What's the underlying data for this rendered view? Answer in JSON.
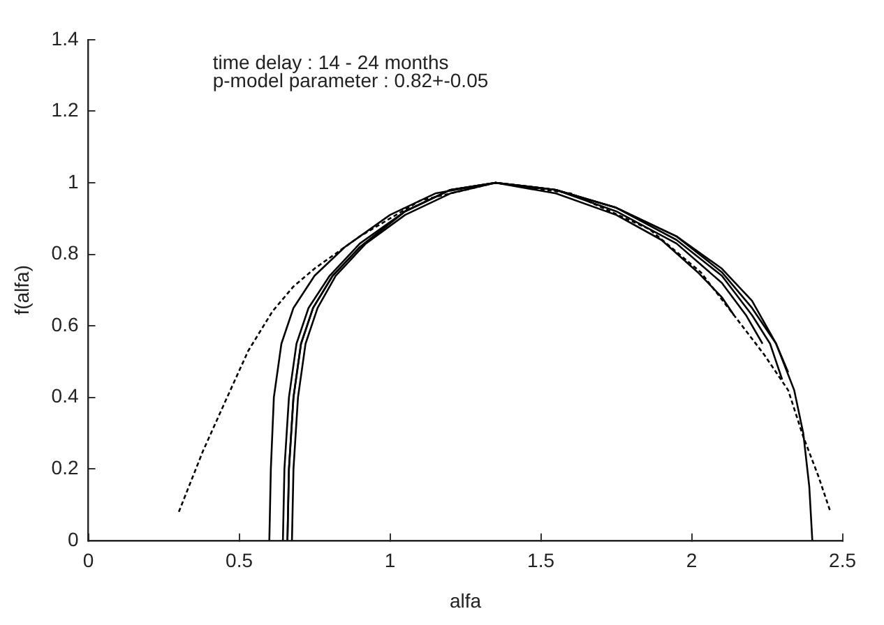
{
  "chart_data": {
    "type": "line",
    "xlabel": "alfa",
    "ylabel": "f(alfa)",
    "annotations": [
      "time delay : 14 - 24 months",
      "p-model parameter : 0.82+-0.05"
    ],
    "xlim": [
      0,
      2.5
    ],
    "xticks": [
      0,
      0.5,
      1,
      1.5,
      2,
      2.5
    ],
    "ylim": [
      0,
      1.4
    ],
    "yticks": [
      0,
      0.2,
      0.4,
      0.6,
      0.8,
      1,
      1.2,
      1.4
    ],
    "grid": false,
    "legend": false,
    "marker": "none",
    "series": [
      {
        "color": "#000000",
        "line_style": "solid",
        "x": [
          0.6,
          0.605,
          0.615,
          0.64,
          0.68,
          0.75,
          0.85,
          1.0,
          1.15,
          1.35,
          1.55,
          1.75,
          1.95,
          2.1,
          2.2,
          2.28,
          2.34,
          2.37,
          2.39,
          2.4
        ],
        "values": [
          0,
          0.2,
          0.4,
          0.55,
          0.65,
          0.74,
          0.82,
          0.91,
          0.97,
          1.0,
          0.98,
          0.93,
          0.85,
          0.76,
          0.67,
          0.55,
          0.42,
          0.3,
          0.15,
          0
        ]
      },
      {
        "color": "#000000",
        "line_style": "solid",
        "x": [
          0.645,
          0.65,
          0.665,
          0.69,
          0.73,
          0.8,
          0.9,
          1.05,
          1.2,
          1.35,
          1.55,
          1.75,
          1.95,
          2.1,
          2.2,
          2.28,
          2.32
        ],
        "values": [
          0,
          0.2,
          0.4,
          0.55,
          0.65,
          0.74,
          0.83,
          0.92,
          0.98,
          1.0,
          0.98,
          0.93,
          0.85,
          0.75,
          0.65,
          0.55,
          0.47
        ]
      },
      {
        "color": "#000000",
        "line_style": "solid",
        "x": [
          0.66,
          0.665,
          0.68,
          0.705,
          0.745,
          0.81,
          0.9,
          1.05,
          1.2,
          1.35,
          1.55,
          1.75,
          1.95,
          2.1,
          2.2,
          2.26,
          2.3
        ],
        "values": [
          0,
          0.2,
          0.4,
          0.55,
          0.65,
          0.74,
          0.82,
          0.92,
          0.98,
          1.0,
          0.98,
          0.93,
          0.84,
          0.74,
          0.63,
          0.55,
          0.45
        ]
      },
      {
        "color": "#000000",
        "line_style": "solid",
        "x": [
          0.675,
          0.68,
          0.695,
          0.72,
          0.76,
          0.82,
          0.92,
          1.05,
          1.2,
          1.35,
          1.55,
          1.75,
          1.95,
          2.1,
          2.18,
          2.235
        ],
        "values": [
          0,
          0.2,
          0.4,
          0.55,
          0.65,
          0.74,
          0.83,
          0.91,
          0.97,
          1.0,
          0.98,
          0.92,
          0.83,
          0.72,
          0.63,
          0.55
        ]
      },
      {
        "color": "#000000",
        "line_style": "solid",
        "x": [
          0.66,
          0.665,
          0.68,
          0.705,
          0.745,
          0.81,
          0.9,
          1.05,
          1.2,
          1.35,
          1.55,
          1.75,
          1.9,
          2.02,
          2.1,
          2.14
        ],
        "values": [
          0,
          0.2,
          0.4,
          0.55,
          0.65,
          0.74,
          0.82,
          0.92,
          0.98,
          1.0,
          0.97,
          0.91,
          0.84,
          0.75,
          0.68,
          0.63
        ]
      },
      {
        "color": "#000000",
        "line_style": "dashed",
        "x": [
          0.3,
          0.38,
          0.46,
          0.53,
          0.61,
          0.68,
          0.75,
          0.9,
          1.1,
          1.35,
          1.6,
          1.86,
          2.03,
          2.14,
          2.24,
          2.32,
          2.37,
          2.42,
          2.46
        ],
        "values": [
          0.08,
          0.25,
          0.4,
          0.53,
          0.64,
          0.71,
          0.76,
          0.85,
          0.95,
          1.0,
          0.97,
          0.87,
          0.75,
          0.63,
          0.52,
          0.42,
          0.29,
          0.18,
          0.08
        ]
      }
    ]
  }
}
